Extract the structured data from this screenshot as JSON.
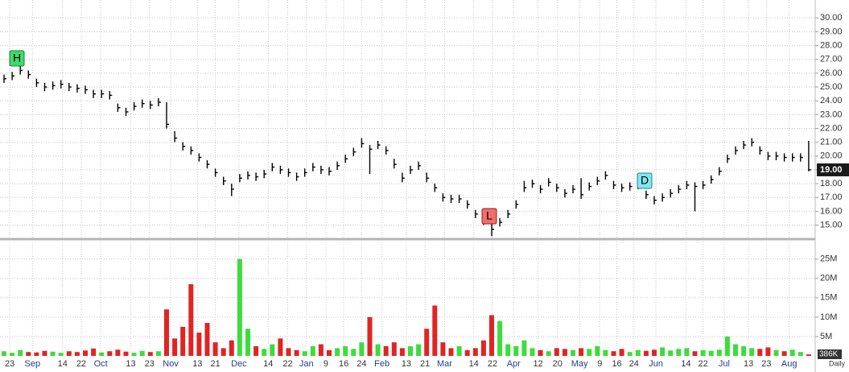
{
  "chart_data": [
    {
      "type": "ohlc",
      "ylim": [
        14.1,
        31.3
      ],
      "yticks": [
        {
          "value": 15,
          "label": "15.00"
        },
        {
          "value": 16,
          "label": "16.00"
        },
        {
          "value": 17,
          "label": "17.00"
        },
        {
          "value": 18,
          "label": "18.00"
        },
        {
          "value": 19,
          "label": "19.00"
        },
        {
          "value": 20,
          "label": "20.00"
        },
        {
          "value": 21,
          "label": "21.00"
        },
        {
          "value": 22,
          "label": "22.00"
        },
        {
          "value": 23,
          "label": "23.00"
        },
        {
          "value": 24,
          "label": "24.00"
        },
        {
          "value": 25,
          "label": "25.00"
        },
        {
          "value": 26,
          "label": "26.00"
        },
        {
          "value": 27,
          "label": "27.00"
        },
        {
          "value": 28,
          "label": "28.00"
        },
        {
          "value": 29,
          "label": "29.00"
        },
        {
          "value": 30,
          "label": "30.00"
        }
      ],
      "xticks": [
        {
          "value": 0.7,
          "label": "23"
        },
        {
          "value": 3.5,
          "label": "Sep"
        },
        {
          "value": 7.2,
          "label": "14"
        },
        {
          "value": 9.5,
          "label": "22"
        },
        {
          "value": 11.9,
          "label": "Oct"
        },
        {
          "value": 15.6,
          "label": "13"
        },
        {
          "value": 17.9,
          "label": "23"
        },
        {
          "value": 20.5,
          "label": "Nov"
        },
        {
          "value": 23.8,
          "label": "13"
        },
        {
          "value": 26,
          "label": "21"
        },
        {
          "value": 28.9,
          "label": "Dec"
        },
        {
          "value": 32.5,
          "label": "14"
        },
        {
          "value": 34.9,
          "label": "22"
        },
        {
          "value": 37.2,
          "label": "Jan"
        },
        {
          "value": 39.6,
          "label": "9"
        },
        {
          "value": 41.8,
          "label": "16"
        },
        {
          "value": 44,
          "label": "24"
        },
        {
          "value": 46.5,
          "label": "Feb"
        },
        {
          "value": 49.5,
          "label": "13"
        },
        {
          "value": 51.8,
          "label": "21"
        },
        {
          "value": 54.2,
          "label": "Mar"
        },
        {
          "value": 57.8,
          "label": "14"
        },
        {
          "value": 60.1,
          "label": "22"
        },
        {
          "value": 62.7,
          "label": "Apr"
        },
        {
          "value": 65.7,
          "label": "12"
        },
        {
          "value": 68.1,
          "label": "20"
        },
        {
          "value": 70.8,
          "label": "May"
        },
        {
          "value": 73.3,
          "label": "9"
        },
        {
          "value": 75.4,
          "label": "16"
        },
        {
          "value": 77.5,
          "label": "24"
        },
        {
          "value": 80.2,
          "label": "Jun"
        },
        {
          "value": 83.9,
          "label": "14"
        },
        {
          "value": 86,
          "label": "22"
        },
        {
          "value": 88.6,
          "label": "Jul"
        },
        {
          "value": 91.6,
          "label": "13"
        },
        {
          "value": 93.8,
          "label": "23"
        },
        {
          "value": 96.6,
          "label": "Aug"
        }
      ],
      "close": [
        25.6,
        25.8,
        26.2,
        25.9,
        25.3,
        25.0,
        25.1,
        25.2,
        25.0,
        24.9,
        24.8,
        24.5,
        24.5,
        24.4,
        23.5,
        23.2,
        23.6,
        23.8,
        23.7,
        23.9,
        22.3,
        21.3,
        20.7,
        20.4,
        19.9,
        19.4,
        18.8,
        18.2,
        17.6,
        18.4,
        18.6,
        18.5,
        18.7,
        19.2,
        19.0,
        18.8,
        18.5,
        18.8,
        19.2,
        19.0,
        18.9,
        19.3,
        19.8,
        20.3,
        20.9,
        20.5,
        20.8,
        20.4,
        19.4,
        18.4,
        19.0,
        19.3,
        18.4,
        17.7,
        17.0,
        16.9,
        16.9,
        16.5,
        15.8,
        15.3,
        14.7,
        15.2,
        15.8,
        16.5,
        17.7,
        18.0,
        17.6,
        18.1,
        17.7,
        17.3,
        17.6,
        17.2,
        17.8,
        18.2,
        18.6,
        17.9,
        17.7,
        17.8,
        17.9,
        17.2,
        16.8,
        17.0,
        17.3,
        17.6,
        17.9,
        17.8,
        17.9,
        18.3,
        18.9,
        19.8,
        20.4,
        20.8,
        21.0,
        20.4,
        20.0,
        20.0,
        19.9,
        19.9,
        19.9,
        19.0
      ],
      "high": [
        25.9,
        26.1,
        26.5,
        26.2,
        25.6,
        25.3,
        25.4,
        25.5,
        25.3,
        25.2,
        25.1,
        24.8,
        24.8,
        24.7,
        23.8,
        23.5,
        23.9,
        24.1,
        24.0,
        24.2,
        23.9,
        21.8,
        21.0,
        20.7,
        20.2,
        19.7,
        19.1,
        18.5,
        18.0,
        18.7,
        18.9,
        18.8,
        19.0,
        19.5,
        19.3,
        19.1,
        18.8,
        19.1,
        19.5,
        19.3,
        19.2,
        19.6,
        20.1,
        20.6,
        21.3,
        20.8,
        21.1,
        20.7,
        19.8,
        18.8,
        19.3,
        19.6,
        18.8,
        18.0,
        17.3,
        17.2,
        17.2,
        16.8,
        16.1,
        15.6,
        15.4,
        15.5,
        16.1,
        16.8,
        18.2,
        18.3,
        17.9,
        18.4,
        18.0,
        17.6,
        17.9,
        18.4,
        18.1,
        18.5,
        18.9,
        18.2,
        18.0,
        18.1,
        18.2,
        17.5,
        17.1,
        17.3,
        17.6,
        17.9,
        18.2,
        18.1,
        18.2,
        18.6,
        19.2,
        20.1,
        20.7,
        21.1,
        21.3,
        20.7,
        20.3,
        20.3,
        20.2,
        20.2,
        20.2,
        21.1
      ],
      "low": [
        25.3,
        25.5,
        25.9,
        25.6,
        25.0,
        24.7,
        24.8,
        24.9,
        24.7,
        24.6,
        24.5,
        24.2,
        24.2,
        24.1,
        23.2,
        22.9,
        23.3,
        23.5,
        23.4,
        23.6,
        22.0,
        21.0,
        20.4,
        20.1,
        19.6,
        19.1,
        18.5,
        17.9,
        17.1,
        18.1,
        18.3,
        18.2,
        18.4,
        18.9,
        18.7,
        18.5,
        18.2,
        18.5,
        18.9,
        18.7,
        18.6,
        19.0,
        19.5,
        20.0,
        20.6,
        18.7,
        20.5,
        20.1,
        19.1,
        18.1,
        18.7,
        19.0,
        18.1,
        17.4,
        16.7,
        16.6,
        16.6,
        16.2,
        15.5,
        15.0,
        14.2,
        14.9,
        15.5,
        16.2,
        17.4,
        17.7,
        17.3,
        17.8,
        17.4,
        17.0,
        17.3,
        16.9,
        17.5,
        17.9,
        18.3,
        17.6,
        17.4,
        17.5,
        17.6,
        16.9,
        16.5,
        16.7,
        17.0,
        17.3,
        17.6,
        16.0,
        17.6,
        18.0,
        18.6,
        19.5,
        20.1,
        20.5,
        20.7,
        20.1,
        19.7,
        19.7,
        19.6,
        19.6,
        19.6,
        18.9
      ],
      "last_label": "19.00",
      "markers": [
        "H",
        "L",
        "D"
      ],
      "grid": true
    },
    {
      "type": "volume",
      "ylim": [
        0,
        29.5
      ],
      "yticks": [
        {
          "value": 5,
          "label": "5M"
        },
        {
          "value": 10,
          "label": "10M"
        },
        {
          "value": 15,
          "label": "15M"
        },
        {
          "value": 20,
          "label": "20M"
        },
        {
          "value": 25,
          "label": "25M"
        }
      ],
      "values": [
        1.2,
        0.8,
        1.5,
        1.0,
        0.9,
        1.3,
        1.1,
        0.8,
        1.2,
        1.0,
        1.4,
        1.9,
        0.9,
        1.2,
        1.6,
        1.1,
        0.8,
        1.3,
        1.0,
        1.2,
        12.0,
        4.5,
        7.5,
        18.5,
        6.0,
        8.5,
        3.5,
        2.0,
        4.0,
        25.0,
        7.0,
        2.5,
        1.8,
        3.0,
        4.5,
        2.0,
        1.5,
        1.2,
        2.5,
        3.0,
        1.5,
        2.0,
        2.5,
        1.8,
        3.5,
        10.0,
        3.0,
        2.5,
        3.5,
        2.0,
        2.5,
        3.0,
        7.0,
        13.0,
        3.5,
        2.0,
        2.5,
        1.5,
        2.0,
        4.0,
        10.5,
        9.0,
        3.0,
        2.5,
        4.0,
        2.0,
        1.5,
        1.2,
        2.0,
        1.8,
        1.5,
        2.0,
        1.8,
        2.5,
        1.5,
        1.2,
        1.8,
        1.0,
        1.5,
        1.3,
        1.6,
        2.2,
        1.4,
        1.8,
        2.0,
        1.2,
        1.5,
        1.3,
        1.6,
        5.0,
        3.0,
        2.5,
        2.0,
        1.8,
        2.2,
        1.5,
        1.2,
        1.6,
        1.0,
        0.386
      ],
      "last_label": "386K",
      "period": "Daily",
      "up_color": "#3ddc3d",
      "down_color": "#e02424",
      "grid": true
    }
  ]
}
